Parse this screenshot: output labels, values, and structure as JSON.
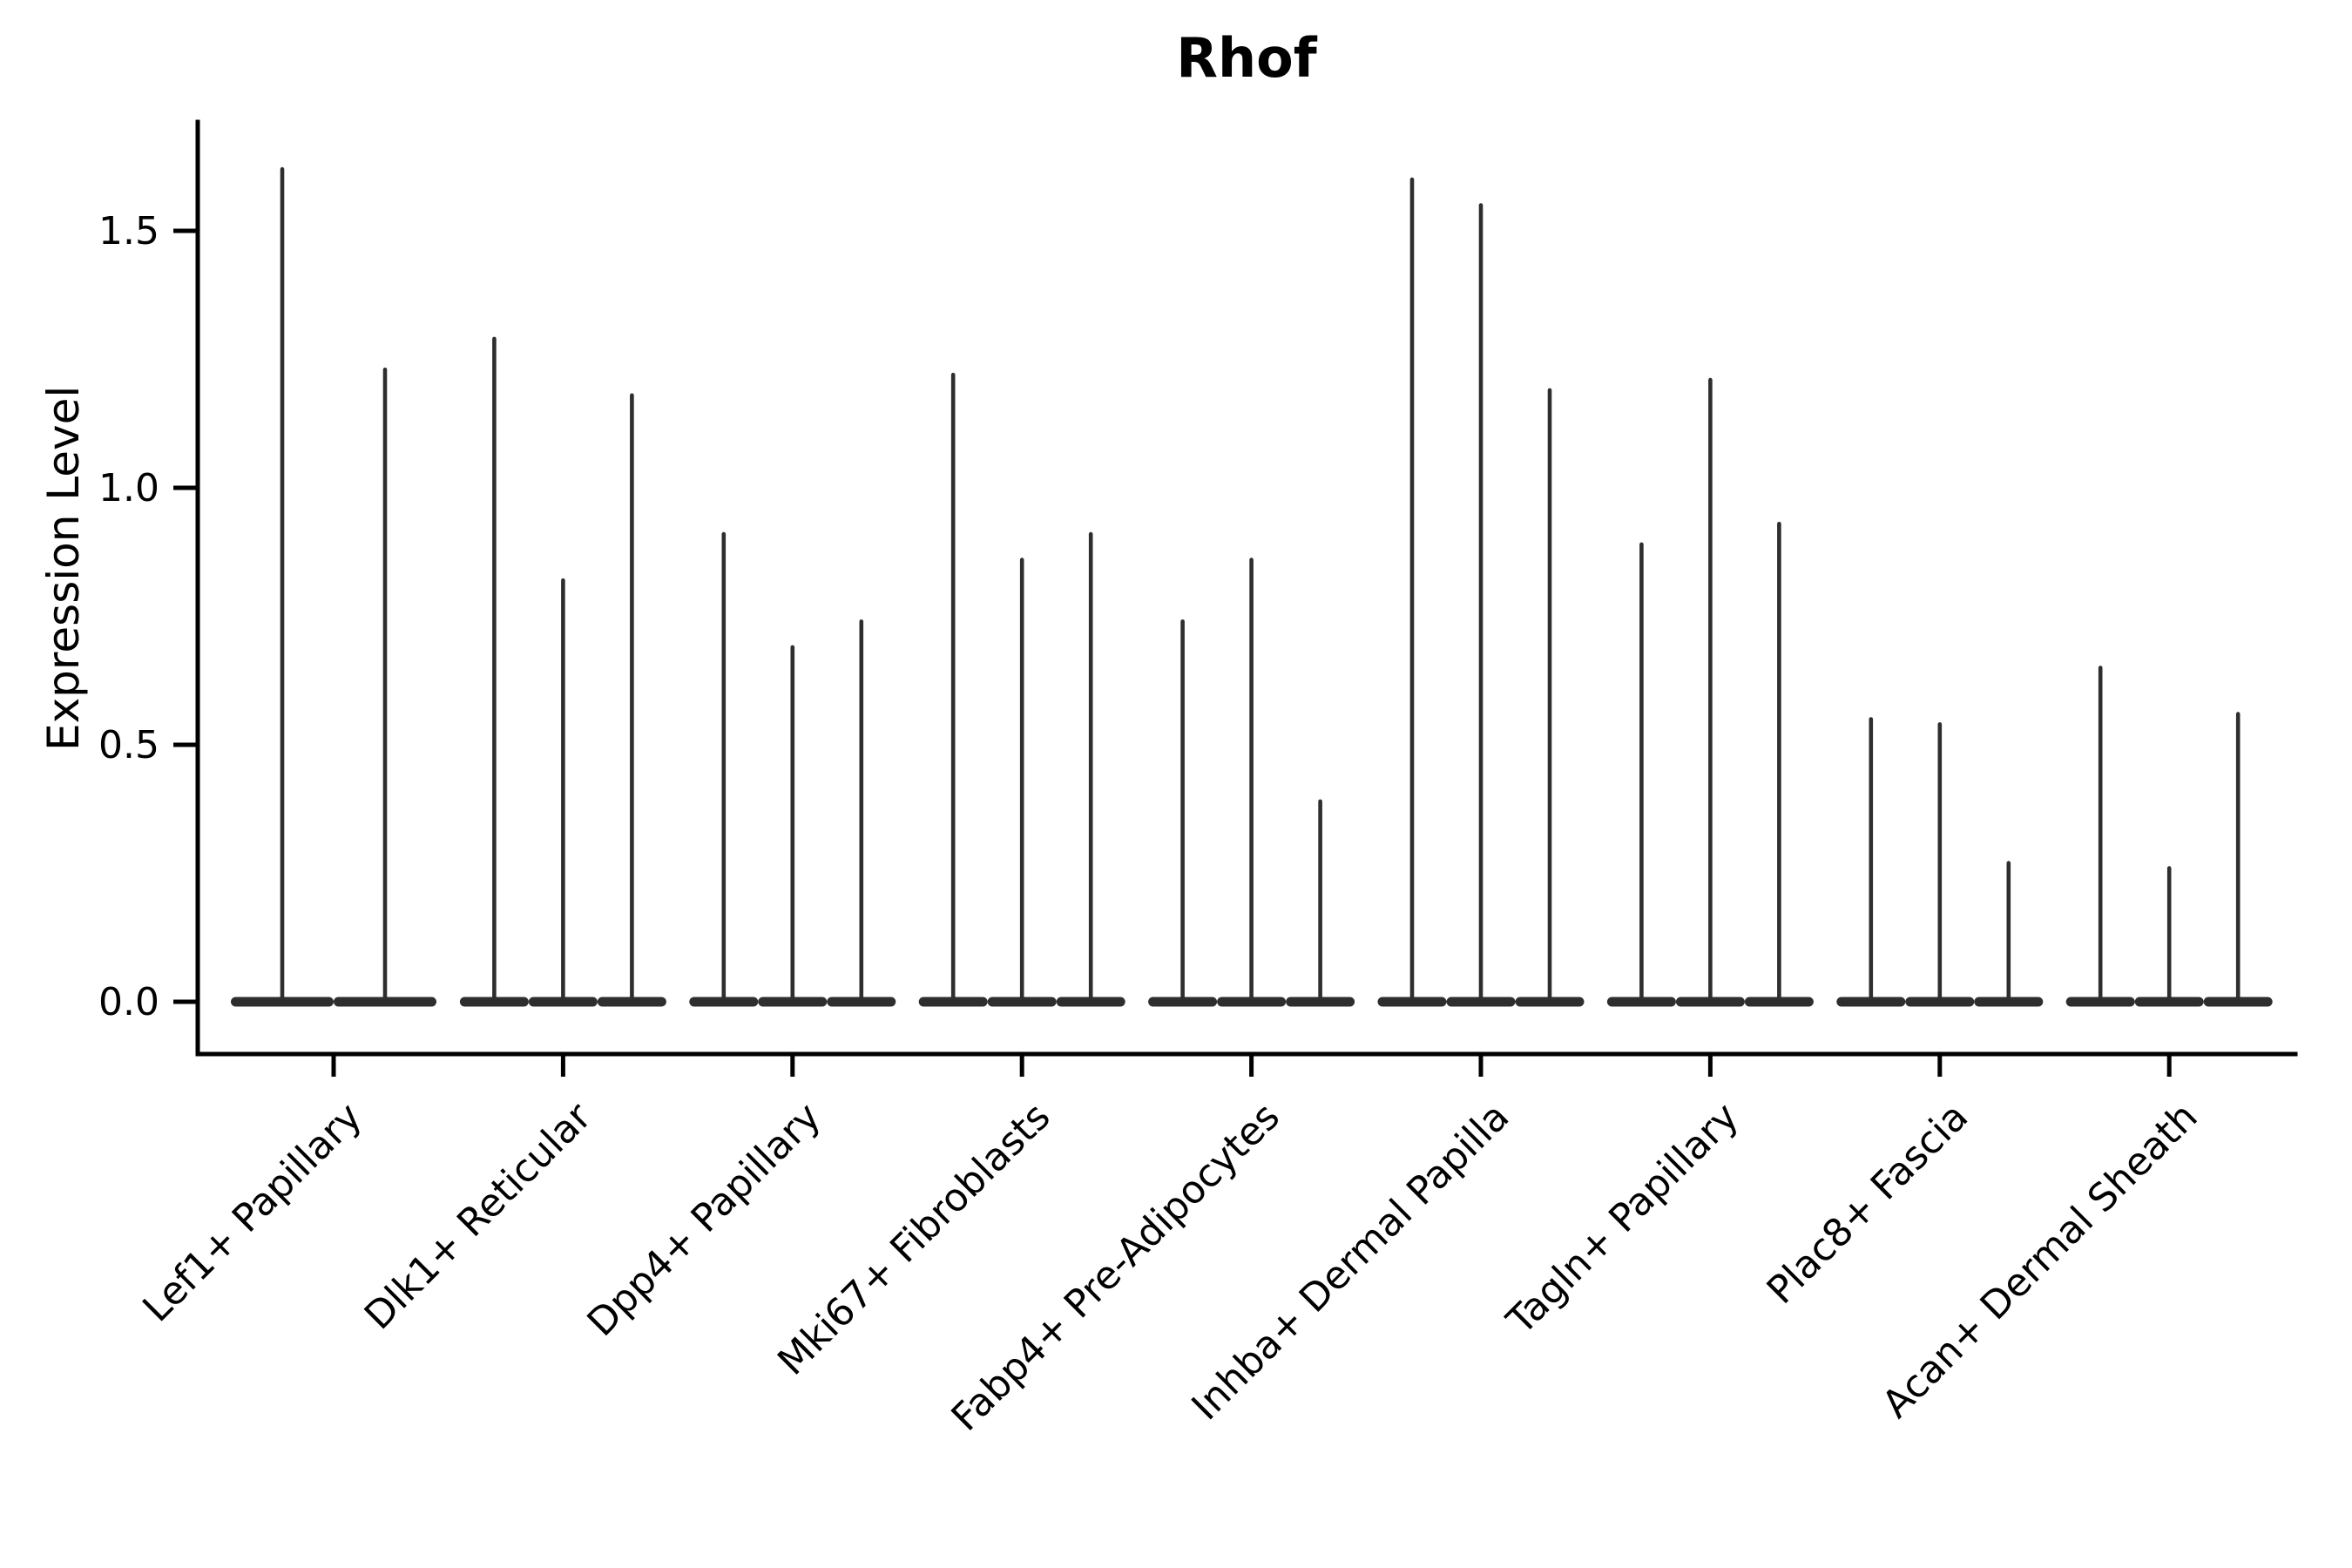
{
  "figure": {
    "kind": "violin-plot-figure"
  },
  "chart_data": {
    "type": "violin",
    "title": "Rhof",
    "xlabel": "",
    "ylabel": "Expression Level",
    "legend": "none",
    "grid": false,
    "y_ticks": [
      0.0,
      0.5,
      1.0,
      1.5
    ],
    "y_tick_labels": [
      "0.0",
      "0.5",
      "1.0",
      "1.5"
    ],
    "ylim": [
      -0.1,
      1.71
    ],
    "categories": [
      "Lef1+ Papillary",
      "Dlk1+ Reticular",
      "Dpp4+ Papillary",
      "Mki67+ Fibroblasts",
      "Fabp4+ Pre-Adipocytes",
      "Inhba+ Dermal Papilla",
      "Tagln+ Papillary",
      "Plac8+ Fascia",
      "Acan+ Dermal Sheath"
    ],
    "violin_style": "thin spike violins with wide flat base at zero expression",
    "series": [
      {
        "category": "Lef1+ Papillary",
        "violin_peaks": [
          1.62,
          1.23
        ]
      },
      {
        "category": "Dlk1+ Reticular",
        "violin_peaks": [
          1.29,
          0.82,
          1.18
        ]
      },
      {
        "category": "Dpp4+ Papillary",
        "violin_peaks": [
          0.91,
          0.69,
          0.74
        ]
      },
      {
        "category": "Mki67+ Fibroblasts",
        "violin_peaks": [
          1.22,
          0.86,
          0.91
        ]
      },
      {
        "category": "Fabp4+ Pre-Adipocytes",
        "violin_peaks": [
          0.74,
          0.86,
          0.39
        ]
      },
      {
        "category": "Inhba+ Dermal Papilla",
        "violin_peaks": [
          1.6,
          1.55,
          1.19
        ]
      },
      {
        "category": "Tagln+ Papillary",
        "violin_peaks": [
          0.89,
          1.21,
          0.93
        ]
      },
      {
        "category": "Plac8+ Fascia",
        "violin_peaks": [
          0.55,
          0.54,
          0.27
        ]
      },
      {
        "category": "Acan+ Dermal Sheath",
        "violin_peaks": [
          0.65,
          0.26,
          0.56
        ]
      }
    ],
    "colors": {
      "violin_ink": "#2e2e2e",
      "axis": "#000000",
      "text": "#000000",
      "background": "#ffffff"
    }
  }
}
